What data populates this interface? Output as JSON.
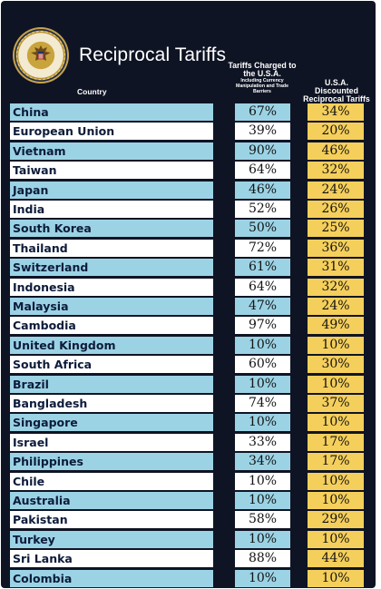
{
  "title": "Reciprocal Tariffs",
  "headers": {
    "country": "Country",
    "charged_main": "Tariffs Charged to the U.S.A.",
    "charged_sub": "Including Currency Manipulation and Trade Barriers",
    "discounted": "U.S.A. Discounted Reciprocal Tariffs"
  },
  "seal": {
    "icon": "presidential-seal-icon",
    "colors": {
      "gold": "#c9a43c",
      "navy": "#1b2a4d"
    }
  },
  "colors": {
    "background": "#0f1424",
    "row_blue": "#9bd3e5",
    "row_white": "#ffffff",
    "discount_yellow": "#f5cf5b"
  },
  "rows": [
    {
      "country": "China",
      "charged": "67%",
      "discounted": "34%"
    },
    {
      "country": "European Union",
      "charged": "39%",
      "discounted": "20%"
    },
    {
      "country": "Vietnam",
      "charged": "90%",
      "discounted": "46%"
    },
    {
      "country": "Taiwan",
      "charged": "64%",
      "discounted": "32%"
    },
    {
      "country": "Japan",
      "charged": "46%",
      "discounted": "24%"
    },
    {
      "country": "India",
      "charged": "52%",
      "discounted": "26%"
    },
    {
      "country": "South Korea",
      "charged": "50%",
      "discounted": "25%"
    },
    {
      "country": "Thailand",
      "charged": "72%",
      "discounted": "36%"
    },
    {
      "country": "Switzerland",
      "charged": "61%",
      "discounted": "31%"
    },
    {
      "country": "Indonesia",
      "charged": "64%",
      "discounted": "32%"
    },
    {
      "country": "Malaysia",
      "charged": "47%",
      "discounted": "24%"
    },
    {
      "country": "Cambodia",
      "charged": "97%",
      "discounted": "49%"
    },
    {
      "country": "United Kingdom",
      "charged": "10%",
      "discounted": "10%"
    },
    {
      "country": "South Africa",
      "charged": "60%",
      "discounted": "30%"
    },
    {
      "country": "Brazil",
      "charged": "10%",
      "discounted": "10%"
    },
    {
      "country": "Bangladesh",
      "charged": "74%",
      "discounted": "37%"
    },
    {
      "country": "Singapore",
      "charged": "10%",
      "discounted": "10%"
    },
    {
      "country": "Israel",
      "charged": "33%",
      "discounted": "17%"
    },
    {
      "country": "Philippines",
      "charged": "34%",
      "discounted": "17%"
    },
    {
      "country": "Chile",
      "charged": "10%",
      "discounted": "10%"
    },
    {
      "country": "Australia",
      "charged": "10%",
      "discounted": "10%"
    },
    {
      "country": "Pakistan",
      "charged": "58%",
      "discounted": "29%"
    },
    {
      "country": "Turkey",
      "charged": "10%",
      "discounted": "10%"
    },
    {
      "country": "Sri Lanka",
      "charged": "88%",
      "discounted": "44%"
    },
    {
      "country": "Colombia",
      "charged": "10%",
      "discounted": "10%"
    }
  ]
}
